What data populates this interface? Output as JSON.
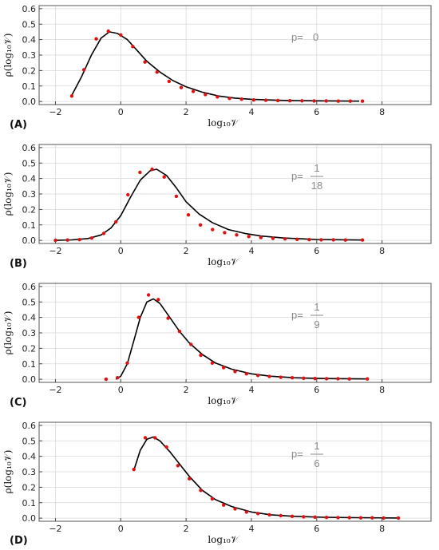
{
  "chart_data": [
    {
      "type": "line",
      "panel_label": "(A)",
      "xlabel": "log₁₀𝒱",
      "ylabel": "ρ(log₁₀𝒱)",
      "xlim": [
        -2.5,
        9.5
      ],
      "ylim": [
        -0.02,
        0.62
      ],
      "xticks": [
        -2,
        0,
        2,
        4,
        6,
        8
      ],
      "yticks": [
        0.0,
        0.1,
        0.2,
        0.3,
        0.4,
        0.5,
        0.6
      ],
      "grid": true,
      "annotation": {
        "prefix": "p=",
        "value": "0"
      },
      "series": [
        {
          "role": "model",
          "color": "#000000",
          "x": [
            -1.5,
            -1.2,
            -0.9,
            -0.6,
            -0.35,
            -0.1,
            0.2,
            0.5,
            0.8,
            1.2,
            1.6,
            2.0,
            2.5,
            3.0,
            3.5,
            4.0,
            5.0,
            6.0,
            7.3
          ],
          "y": [
            0.04,
            0.16,
            0.3,
            0.41,
            0.45,
            0.44,
            0.4,
            0.33,
            0.26,
            0.19,
            0.135,
            0.095,
            0.06,
            0.035,
            0.022,
            0.014,
            0.007,
            0.004,
            0.002
          ]
        },
        {
          "role": "data",
          "color": "#e01010",
          "x": [
            -1.5,
            -1.13,
            -0.75,
            -0.38,
            0.0,
            0.37,
            0.74,
            1.11,
            1.48,
            1.85,
            2.22,
            2.59,
            2.96,
            3.33,
            3.7,
            4.07,
            4.44,
            4.81,
            5.18,
            5.55,
            5.92,
            6.29,
            6.66,
            7.03,
            7.4
          ],
          "y": [
            0.035,
            0.205,
            0.405,
            0.455,
            0.43,
            0.355,
            0.255,
            0.19,
            0.13,
            0.09,
            0.065,
            0.045,
            0.03,
            0.02,
            0.015,
            0.01,
            0.008,
            0.006,
            0.005,
            0.004,
            0.003,
            0.003,
            0.002,
            0.002,
            0.002
          ]
        }
      ]
    },
    {
      "type": "line",
      "panel_label": "(B)",
      "xlabel": "log₁₀𝒱",
      "ylabel": "ρ(log₁₀𝒱)",
      "xlim": [
        -2.5,
        9.5
      ],
      "ylim": [
        -0.02,
        0.62
      ],
      "xticks": [
        -2,
        0,
        2,
        4,
        6,
        8
      ],
      "yticks": [
        0.0,
        0.1,
        0.2,
        0.3,
        0.4,
        0.5,
        0.6
      ],
      "grid": true,
      "annotation": {
        "prefix": "p=",
        "num": "1",
        "den": "18"
      },
      "series": [
        {
          "role": "model",
          "color": "#000000",
          "x": [
            -2.0,
            -1.5,
            -1.0,
            -0.6,
            -0.3,
            0.0,
            0.3,
            0.6,
            0.9,
            1.1,
            1.4,
            1.7,
            2.0,
            2.4,
            2.8,
            3.3,
            3.8,
            4.3,
            5.0,
            6.0,
            7.4
          ],
          "y": [
            0.0,
            0.003,
            0.012,
            0.035,
            0.08,
            0.16,
            0.28,
            0.39,
            0.45,
            0.46,
            0.42,
            0.34,
            0.25,
            0.17,
            0.115,
            0.07,
            0.045,
            0.028,
            0.015,
            0.006,
            0.002
          ]
        },
        {
          "role": "data",
          "color": "#e01010",
          "x": [
            -2.0,
            -1.63,
            -1.26,
            -0.89,
            -0.52,
            -0.15,
            0.22,
            0.59,
            0.96,
            1.33,
            1.7,
            2.07,
            2.44,
            2.81,
            3.18,
            3.55,
            3.92,
            4.29,
            4.66,
            5.03,
            5.4,
            5.77,
            6.14,
            6.51,
            6.88,
            7.4
          ],
          "y": [
            0.0,
            0.002,
            0.005,
            0.015,
            0.045,
            0.12,
            0.295,
            0.44,
            0.46,
            0.41,
            0.285,
            0.165,
            0.1,
            0.07,
            0.05,
            0.035,
            0.025,
            0.018,
            0.013,
            0.01,
            0.007,
            0.005,
            0.004,
            0.003,
            0.002,
            0.002
          ]
        }
      ]
    },
    {
      "type": "line",
      "panel_label": "(C)",
      "xlabel": "log₁₀𝒱",
      "ylabel": "ρ(log₁₀𝒱)",
      "xlim": [
        -2.5,
        9.5
      ],
      "ylim": [
        -0.02,
        0.62
      ],
      "xticks": [
        -2,
        0,
        2,
        4,
        6,
        8
      ],
      "yticks": [
        0.0,
        0.1,
        0.2,
        0.3,
        0.4,
        0.5,
        0.6
      ],
      "grid": true,
      "annotation": {
        "prefix": "p=",
        "num": "1",
        "den": "9"
      },
      "series": [
        {
          "role": "model",
          "color": "#000000",
          "x": [
            -0.15,
            0.0,
            0.2,
            0.4,
            0.6,
            0.8,
            1.0,
            1.2,
            1.5,
            1.8,
            2.1,
            2.5,
            2.9,
            3.4,
            4.0,
            4.6,
            5.3,
            6.2,
            7.5
          ],
          "y": [
            0.0,
            0.02,
            0.1,
            0.25,
            0.4,
            0.5,
            0.52,
            0.49,
            0.4,
            0.31,
            0.235,
            0.16,
            0.105,
            0.065,
            0.035,
            0.02,
            0.01,
            0.005,
            0.002
          ]
        },
        {
          "role": "data",
          "color": "#e01010",
          "x": [
            -0.45,
            -0.1,
            0.2,
            0.55,
            0.85,
            1.15,
            1.45,
            1.8,
            2.15,
            2.45,
            2.8,
            3.15,
            3.5,
            3.85,
            4.2,
            4.55,
            4.9,
            5.25,
            5.6,
            5.95,
            6.3,
            6.65,
            7.0,
            7.55
          ],
          "y": [
            0.0,
            0.01,
            0.105,
            0.4,
            0.545,
            0.515,
            0.395,
            0.31,
            0.225,
            0.155,
            0.105,
            0.075,
            0.05,
            0.035,
            0.025,
            0.018,
            0.013,
            0.01,
            0.007,
            0.005,
            0.004,
            0.003,
            0.002,
            0.002
          ]
        }
      ]
    },
    {
      "type": "line",
      "panel_label": "(D)",
      "xlabel": "log₁₀𝒱",
      "ylabel": "ρ(log₁₀𝒱)",
      "xlim": [
        -2.5,
        9.5
      ],
      "ylim": [
        -0.02,
        0.62
      ],
      "xticks": [
        -2,
        0,
        2,
        4,
        6,
        8
      ],
      "yticks": [
        0.0,
        0.1,
        0.2,
        0.3,
        0.4,
        0.5,
        0.6
      ],
      "grid": true,
      "annotation": {
        "prefix": "p=",
        "num": "1",
        "den": "6"
      },
      "series": [
        {
          "role": "model",
          "color": "#000000",
          "x": [
            0.4,
            0.6,
            0.8,
            1.0,
            1.2,
            1.5,
            1.8,
            2.1,
            2.5,
            2.9,
            3.4,
            4.0,
            4.6,
            5.3,
            6.2,
            7.2,
            8.5
          ],
          "y": [
            0.31,
            0.44,
            0.51,
            0.525,
            0.5,
            0.43,
            0.35,
            0.27,
            0.18,
            0.12,
            0.075,
            0.04,
            0.022,
            0.012,
            0.006,
            0.003,
            0.001
          ]
        },
        {
          "role": "data",
          "color": "#e01010",
          "x": [
            0.4,
            0.75,
            1.05,
            1.4,
            1.75,
            2.1,
            2.45,
            2.8,
            3.15,
            3.5,
            3.85,
            4.2,
            4.55,
            4.9,
            5.25,
            5.6,
            5.95,
            6.3,
            6.65,
            7.0,
            7.35,
            7.7,
            8.05,
            8.5
          ],
          "y": [
            0.315,
            0.52,
            0.52,
            0.46,
            0.34,
            0.255,
            0.18,
            0.125,
            0.085,
            0.06,
            0.04,
            0.03,
            0.022,
            0.016,
            0.012,
            0.009,
            0.007,
            0.005,
            0.004,
            0.003,
            0.002,
            0.002,
            0.001,
            0.001
          ]
        }
      ]
    }
  ]
}
